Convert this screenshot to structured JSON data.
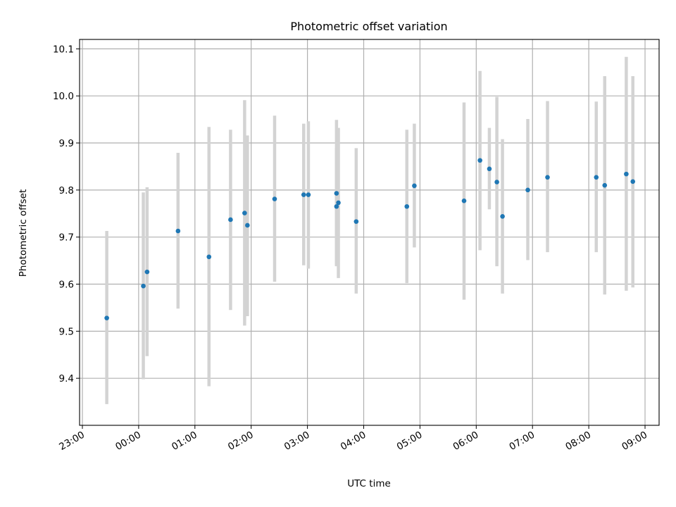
{
  "chart_data": {
    "type": "scatter",
    "title": "Photometric offset variation",
    "xlabel": "UTC time",
    "ylabel": "Photometric offset",
    "xlim_hours": [
      -1.05,
      9.25
    ],
    "ylim": [
      9.3,
      10.12
    ],
    "x_tick_hours": [
      -1,
      0,
      1,
      2,
      3,
      4,
      5,
      6,
      7,
      8,
      9
    ],
    "x_tick_labels": [
      "23:00",
      "00:00",
      "01:00",
      "02:00",
      "03:00",
      "04:00",
      "05:00",
      "06:00",
      "07:00",
      "08:00",
      "09:00"
    ],
    "y_ticks": [
      9.4,
      9.5,
      9.6,
      9.7,
      9.8,
      9.9,
      10.0,
      10.1
    ],
    "y_tick_labels": [
      "9.4",
      "9.5",
      "9.6",
      "9.7",
      "9.8",
      "9.9",
      "10.0",
      "10.1"
    ],
    "grid": true,
    "colors": {
      "points": "#1f77b4",
      "errorbars": "#d3d3d3",
      "grid": "#b0b0b0"
    },
    "points": [
      {
        "time": "23:26",
        "y": 9.528,
        "ylow": 9.345,
        "yhigh": 9.713
      },
      {
        "time": "00:05",
        "y": 9.596,
        "ylow": 9.398,
        "yhigh": 9.795
      },
      {
        "time": "00:09",
        "y": 9.626,
        "ylow": 9.447,
        "yhigh": 9.806
      },
      {
        "time": "00:42",
        "y": 9.713,
        "ylow": 9.548,
        "yhigh": 9.879
      },
      {
        "time": "01:15",
        "y": 9.658,
        "ylow": 9.383,
        "yhigh": 9.934
      },
      {
        "time": "01:38",
        "y": 9.737,
        "ylow": 9.545,
        "yhigh": 9.928
      },
      {
        "time": "01:53",
        "y": 9.751,
        "ylow": 9.512,
        "yhigh": 9.991
      },
      {
        "time": "01:56",
        "y": 9.725,
        "ylow": 9.532,
        "yhigh": 9.916
      },
      {
        "time": "02:25",
        "y": 9.781,
        "ylow": 9.605,
        "yhigh": 9.958
      },
      {
        "time": "02:56",
        "y": 9.79,
        "ylow": 9.64,
        "yhigh": 9.941
      },
      {
        "time": "03:01",
        "y": 9.79,
        "ylow": 9.633,
        "yhigh": 9.946
      },
      {
        "time": "03:31",
        "y": 9.793,
        "ylow": 9.638,
        "yhigh": 9.949
      },
      {
        "time": "03:31",
        "y": 9.765,
        "ylow": 9.64,
        "yhigh": 9.89
      },
      {
        "time": "03:33",
        "y": 9.773,
        "ylow": 9.613,
        "yhigh": 9.932
      },
      {
        "time": "03:52",
        "y": 9.733,
        "ylow": 9.58,
        "yhigh": 9.889
      },
      {
        "time": "04:46",
        "y": 9.765,
        "ylow": 9.602,
        "yhigh": 9.928
      },
      {
        "time": "04:54",
        "y": 9.809,
        "ylow": 9.678,
        "yhigh": 9.941
      },
      {
        "time": "05:47",
        "y": 9.777,
        "ylow": 9.567,
        "yhigh": 9.986
      },
      {
        "time": "06:04",
        "y": 9.863,
        "ylow": 9.672,
        "yhigh": 10.053
      },
      {
        "time": "06:14",
        "y": 9.845,
        "ylow": 9.759,
        "yhigh": 9.932
      },
      {
        "time": "06:22",
        "y": 9.817,
        "ylow": 9.638,
        "yhigh": 9.998
      },
      {
        "time": "06:28",
        "y": 9.744,
        "ylow": 9.58,
        "yhigh": 9.908
      },
      {
        "time": "06:55",
        "y": 9.8,
        "ylow": 9.651,
        "yhigh": 9.951
      },
      {
        "time": "07:16",
        "y": 9.827,
        "ylow": 9.668,
        "yhigh": 9.989
      },
      {
        "time": "08:08",
        "y": 9.827,
        "ylow": 9.668,
        "yhigh": 9.988
      },
      {
        "time": "08:17",
        "y": 9.81,
        "ylow": 9.578,
        "yhigh": 10.042
      },
      {
        "time": "08:40",
        "y": 9.834,
        "ylow": 9.586,
        "yhigh": 10.083
      },
      {
        "time": "08:47",
        "y": 9.818,
        "ylow": 9.593,
        "yhigh": 10.042
      }
    ]
  }
}
